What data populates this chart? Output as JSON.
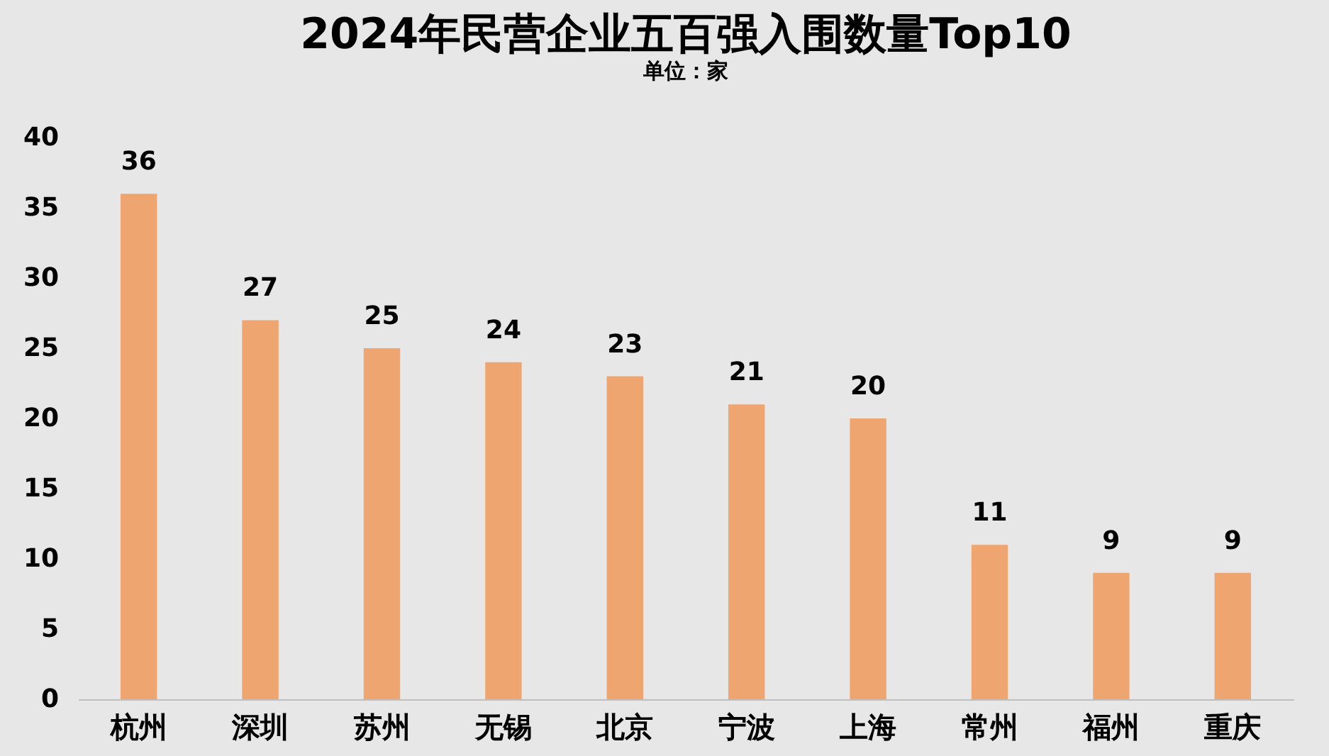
{
  "chart_data": {
    "type": "bar",
    "title": "2024年民营企业五百强入围数量Top10",
    "subtitle": "单位：家",
    "categories": [
      "杭州",
      "深圳",
      "苏州",
      "无锡",
      "北京",
      "宁波",
      "上海",
      "常州",
      "福州",
      "重庆"
    ],
    "values": [
      36,
      27,
      25,
      24,
      23,
      21,
      20,
      11,
      9,
      9
    ],
    "color": "#eea570",
    "ylim": [
      0,
      40
    ],
    "yticks": [
      0,
      5,
      10,
      15,
      20,
      25,
      30,
      35,
      40
    ],
    "grid": false,
    "data_labels": true
  }
}
